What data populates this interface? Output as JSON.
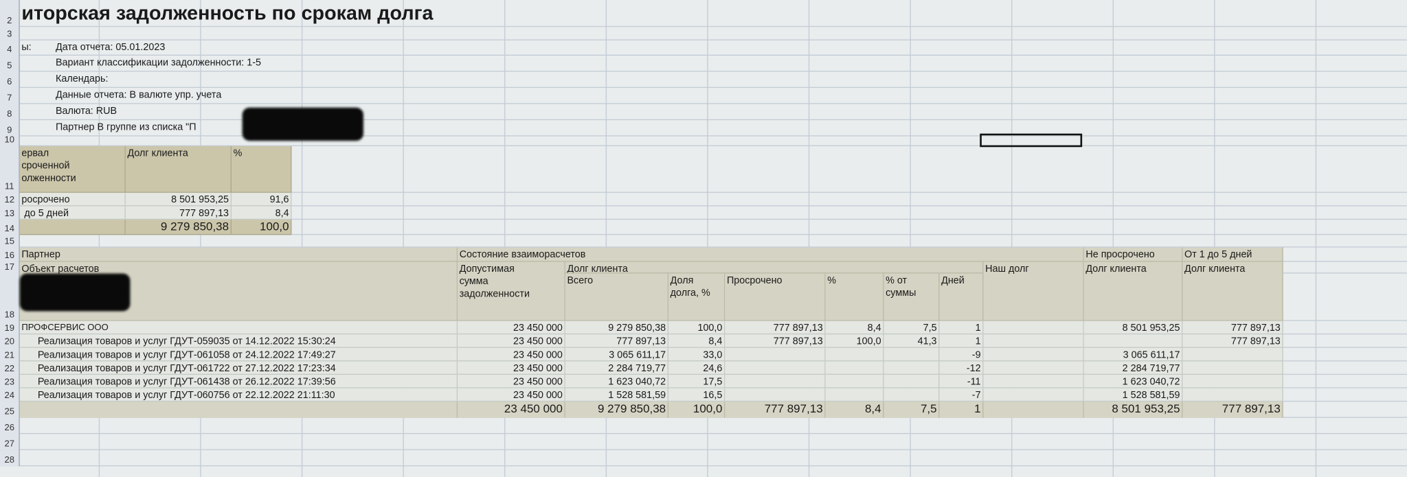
{
  "sheet": {
    "row_numbers": [
      "2",
      "3",
      "4",
      "5",
      "6",
      "7",
      "8",
      "9",
      "10",
      "11",
      "12",
      "13",
      "14",
      "15",
      "16",
      "17",
      "18",
      "19",
      "20",
      "21",
      "22",
      "23",
      "24",
      "25",
      "26",
      "27",
      "28"
    ],
    "title": "иторская задолженность по срокам долга",
    "params": {
      "label_cut": "ы:",
      "report_date": "Дата отчета: 05.01.2023",
      "classification": "Вариант классификации задолженности: 1-5",
      "calendar": "Календарь:",
      "report_data": "Данные отчета: В валюте упр. учета",
      "currency": "Валюта: RUB",
      "partner_filter": "Партнер В группе из списка \"П"
    },
    "summary": {
      "headers": [
        "ервал\nсроченной\nолженности",
        "Долг клиента",
        "%"
      ],
      "rows": [
        [
          "росрочено",
          "8 501 953,25",
          "91,6"
        ],
        [
          " до 5 дней",
          "777 897,13",
          "8,4"
        ]
      ],
      "total": [
        "",
        "9 279 850,38",
        "100,0"
      ]
    },
    "table": {
      "h_partner": "Партнер",
      "h_object": "Объект расчетов",
      "h_state": "Состояние взаиморасчетов",
      "h_allowed": "Допустимая\nсумма\nзадолженности",
      "h_client_debt": "Долг клиента",
      "h_total": "Всего",
      "h_share": "Доля\nдолга, %",
      "h_overdue": "Просрочено",
      "h_pct": "%",
      "h_pct_sum": "% от\nсуммы",
      "h_days": "Дней",
      "h_our_debt": "Наш долг",
      "h_not_overdue": "Не просрочено",
      "h_not_overdue_sub": "Долг клиента",
      "h_1_5": "От 1 до 5 дней",
      "h_1_5_sub": "Долг клиента",
      "rows": [
        [
          "ПРОФСЕРВИС ООО",
          "23 450 000",
          "9 279 850,38",
          "100,0",
          "777 897,13",
          "8,4",
          "7,5",
          "1",
          "",
          "8 501 953,25",
          "777 897,13"
        ],
        [
          "Реализация товаров и услуг ГДУТ-059035 от 14.12.2022 15:30:24",
          "23 450 000",
          "777 897,13",
          "8,4",
          "777 897,13",
          "100,0",
          "41,3",
          "1",
          "",
          "",
          "777 897,13"
        ],
        [
          "Реализация товаров и услуг ГДУТ-061058 от 24.12.2022 17:49:27",
          "23 450 000",
          "3 065 611,17",
          "33,0",
          "",
          "",
          "",
          "-9",
          "",
          "3 065 611,17",
          ""
        ],
        [
          "Реализация товаров и услуг ГДУТ-061722 от 27.12.2022 17:23:34",
          "23 450 000",
          "2 284 719,77",
          "24,6",
          "",
          "",
          "",
          "-12",
          "",
          "2 284 719,77",
          ""
        ],
        [
          "Реализация товаров и услуг ГДУТ-061438 от 26.12.2022 17:39:56",
          "23 450 000",
          "1 623 040,72",
          "17,5",
          "",
          "",
          "",
          "-11",
          "",
          "1 623 040,72",
          ""
        ],
        [
          "Реализация товаров и услуг ГДУТ-060756 от 22.12.2022 21:11:30",
          "23 450 000",
          "1 528 581,59",
          "16,5",
          "",
          "",
          "",
          "-7",
          "",
          "1 528 581,59",
          ""
        ]
      ],
      "total": [
        "",
        "23 450 000",
        "9 279 850,38",
        "100,0",
        "777 897,13",
        "8,4",
        "7,5",
        "1",
        "",
        "8 501 953,25",
        "777 897,13"
      ]
    }
  },
  "colors": {
    "header_fill": "#d5d3c3",
    "summary_fill": "#cbc6aa",
    "grid": "#c3cbd6",
    "background": "#e9eded"
  }
}
